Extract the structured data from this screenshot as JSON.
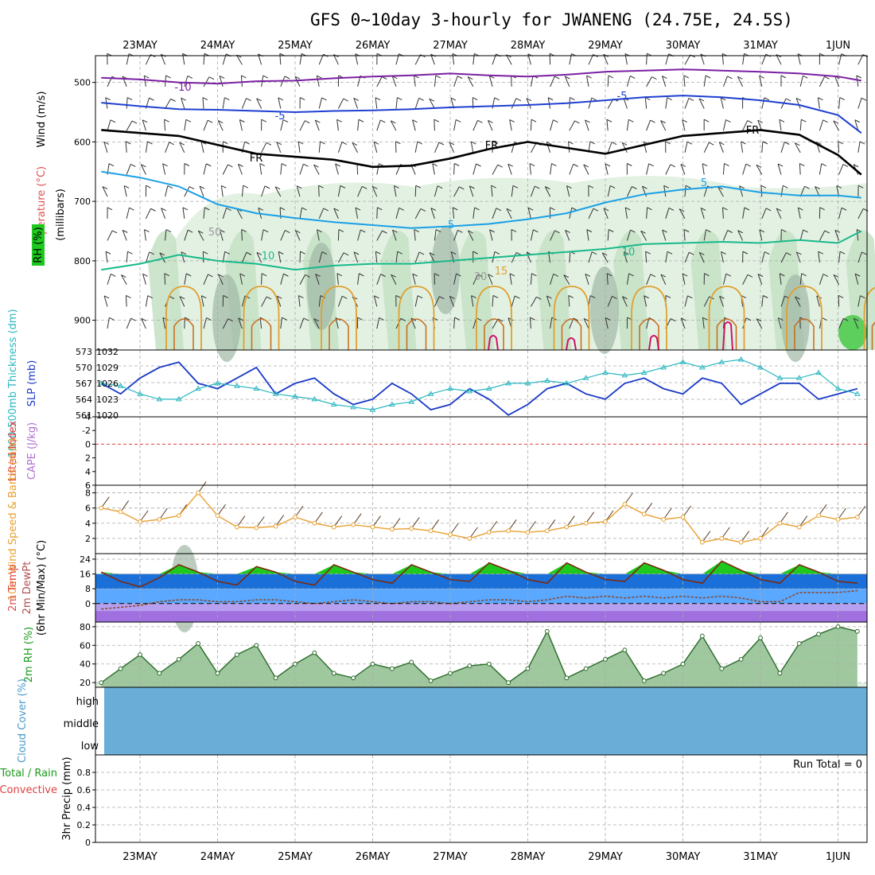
{
  "title": "GFS 0~10day 3-hourly for JWANENG (24.75E, 24.5S)",
  "colors": {
    "purple": "#7a1fa2",
    "blue": "#1f3fd0",
    "cyan": "#1aa0e6",
    "teal": "#19b98a",
    "orange": "#e0a030",
    "magenta": "#d0106a",
    "rh_light": "#e3f1e3",
    "rh_mid": "#c6e2c6",
    "rh_dark": "#9fb8a5",
    "slp": "#1a3ac8",
    "thick": "#2ab7c0",
    "wind10": "#e8a030",
    "cloud": "#6aaed8",
    "green": "#1ec81e",
    "yellow": "#f0f060",
    "lifted": "#e04040"
  },
  "chart_data": {
    "type": "meteogram",
    "days": [
      "23MAY",
      "24MAY",
      "25MAY",
      "26MAY",
      "27MAY",
      "28MAY",
      "29MAY",
      "30MAY",
      "31MAY",
      "1JUN"
    ],
    "x_range_days": [
      -0.5,
      9.3
    ],
    "upper_air": {
      "ylabel_wind": "Wind (m/s)",
      "ylabel_temp": "Temperature (°C)",
      "ylabel_rh": "RH (%)",
      "ylabel_pressure": "(millibars)",
      "pressure_ticks": [
        500,
        600,
        700,
        800,
        900
      ],
      "pressure_range": [
        455,
        950
      ],
      "contour_labels": [
        "-10",
        "-5",
        "FR",
        "5",
        "10",
        "15",
        "30",
        "50"
      ],
      "iso_m10": {
        "x": [
          -0.5,
          0,
          0.5,
          1,
          1.5,
          2,
          2.5,
          3,
          3.5,
          4,
          4.5,
          5,
          5.5,
          6,
          6.5,
          7,
          7.5,
          8,
          8.5,
          9,
          9.3
        ],
        "p": [
          492,
          495,
          500,
          502,
          498,
          497,
          493,
          490,
          488,
          485,
          488,
          490,
          487,
          482,
          480,
          478,
          480,
          482,
          485,
          490,
          497
        ]
      },
      "iso_m5": {
        "x": [
          -0.5,
          0,
          0.5,
          1,
          1.5,
          2,
          2.5,
          3,
          3.5,
          4,
          4.5,
          5,
          5.5,
          6,
          6.5,
          7,
          7.5,
          8,
          8.5,
          9,
          9.3
        ],
        "p": [
          534,
          540,
          545,
          546,
          548,
          550,
          548,
          547,
          545,
          542,
          540,
          538,
          535,
          530,
          525,
          522,
          525,
          530,
          538,
          555,
          585
        ]
      },
      "iso_fr": {
        "x": [
          -0.5,
          0,
          0.5,
          1,
          1.5,
          2,
          2.5,
          3,
          3.5,
          4,
          4.5,
          5,
          5.5,
          6,
          6.5,
          7,
          7.5,
          8,
          8.5,
          9,
          9.3
        ],
        "p": [
          580,
          585,
          590,
          605,
          620,
          625,
          630,
          642,
          640,
          628,
          612,
          600,
          610,
          620,
          605,
          590,
          585,
          580,
          588,
          622,
          655
        ]
      },
      "iso_p5": {
        "x": [
          -0.5,
          0,
          0.5,
          1,
          1.5,
          2,
          2.5,
          3,
          3.5,
          4,
          4.5,
          5,
          5.5,
          6,
          6.5,
          7,
          7.5,
          8,
          8.5,
          9,
          9.3
        ],
        "p": [
          650,
          660,
          675,
          705,
          720,
          728,
          735,
          740,
          745,
          742,
          738,
          730,
          720,
          702,
          688,
          680,
          675,
          685,
          690,
          690,
          694
        ]
      },
      "iso_p10": {
        "x": [
          -0.5,
          0,
          0.5,
          1,
          1.5,
          2,
          2.5,
          3,
          3.5,
          4,
          4.5,
          5,
          5.5,
          6,
          6.5,
          7,
          7.5,
          8,
          8.5,
          9,
          9.3
        ],
        "p": [
          815,
          805,
          790,
          800,
          805,
          815,
          808,
          805,
          805,
          800,
          795,
          790,
          785,
          780,
          772,
          770,
          768,
          770,
          765,
          770,
          750
        ]
      }
    },
    "slp_thickness": {
      "ylabel_thickness": "1000-500mb Thickness (dm)",
      "ylabel_slp": "SLP (mb)",
      "thickness_ticks": [
        561,
        564,
        567,
        570,
        573
      ],
      "slp_ticks": [
        1020,
        1023,
        1026,
        1029,
        1032
      ],
      "x": [
        -0.5,
        -0.25,
        0,
        0.25,
        0.5,
        0.75,
        1,
        1.25,
        1.5,
        1.75,
        2,
        2.25,
        2.5,
        2.75,
        3,
        3.25,
        3.5,
        3.75,
        4,
        4.25,
        4.5,
        4.75,
        5,
        5.25,
        5.5,
        5.75,
        6,
        6.25,
        6.5,
        6.75,
        7,
        7.25,
        7.5,
        7.75,
        8,
        8.25,
        8.5,
        8.75,
        9,
        9.25
      ],
      "slp": [
        1026,
        1024,
        1027,
        1029,
        1030,
        1026,
        1025,
        1027,
        1029,
        1024,
        1026,
        1027,
        1024,
        1022,
        1023,
        1026,
        1024,
        1021,
        1022,
        1025,
        1023,
        1020,
        1022,
        1025,
        1026,
        1024,
        1023,
        1026,
        1027,
        1025,
        1024,
        1027,
        1026,
        1022,
        1024,
        1026,
        1026,
        1023,
        1024,
        1025
      ],
      "thickness": [
        567,
        566.5,
        565,
        564,
        564,
        566,
        567,
        566.5,
        566,
        565,
        564.5,
        564,
        563,
        562.5,
        562,
        563,
        563.5,
        565,
        566,
        565.5,
        566,
        567,
        567,
        567.5,
        567,
        568,
        569,
        568.5,
        569,
        570,
        571,
        570,
        571,
        571.5,
        570,
        568,
        568,
        569,
        566,
        565
      ]
    },
    "lifted_cape": {
      "ylabel_lifted": "Lifted Index",
      "ylabel_cape": "CAPE (J/kg)",
      "ticks": [
        -4,
        -2,
        0,
        2,
        4,
        6
      ],
      "lifted": [
        6,
        6,
        6,
        6,
        6,
        6,
        6,
        6,
        6,
        6
      ]
    },
    "wind10m": {
      "ylabel": "10m Wind Speed & Barbs (m/s)",
      "ticks": [
        2,
        4,
        6,
        8
      ],
      "x": [
        -0.5,
        -0.25,
        0,
        0.25,
        0.5,
        0.75,
        1,
        1.25,
        1.5,
        1.75,
        2,
        2.25,
        2.5,
        2.75,
        3,
        3.25,
        3.5,
        3.75,
        4,
        4.25,
        4.5,
        4.75,
        5,
        5.25,
        5.5,
        5.75,
        6,
        6.25,
        6.5,
        6.75,
        7,
        7.25,
        7.5,
        7.75,
        8,
        8.25,
        8.5,
        8.75,
        9,
        9.25
      ],
      "speed": [
        6,
        5.5,
        4.2,
        4.5,
        5,
        8,
        5,
        3.5,
        3.4,
        3.6,
        4.8,
        4,
        3.5,
        3.8,
        3.5,
        3.2,
        3.3,
        3,
        2.5,
        2,
        2.8,
        3,
        2.8,
        3,
        3.5,
        4,
        4.2,
        6.5,
        5.2,
        4.5,
        4.8,
        1.5,
        2,
        1.5,
        2,
        4,
        3.5,
        5,
        4.5,
        4.8
      ]
    },
    "temp2m": {
      "ylabel_temp": "2m Temp",
      "ylabel_dewpt": "2m DewPt",
      "ylabel_minmax": "(6hr Min/Max) (°C)",
      "ticks": [
        0,
        8,
        16,
        24
      ],
      "x": [
        -0.5,
        -0.25,
        0,
        0.25,
        0.5,
        0.75,
        1,
        1.25,
        1.5,
        1.75,
        2,
        2.25,
        2.5,
        2.75,
        3,
        3.25,
        3.5,
        3.75,
        4,
        4.25,
        4.5,
        4.75,
        5,
        5.25,
        5.5,
        5.75,
        6,
        6.25,
        6.5,
        6.75,
        7,
        7.25,
        7.5,
        7.75,
        8,
        8.25,
        8.5,
        8.75,
        9,
        9.25
      ],
      "temp": [
        17,
        12,
        9,
        14,
        21,
        17,
        12,
        10,
        20,
        17,
        12,
        10,
        21,
        17,
        13,
        11,
        21,
        17,
        13,
        12,
        22,
        18,
        13,
        11,
        22,
        17,
        13,
        12,
        22,
        18,
        13,
        11,
        23,
        18,
        13,
        11,
        21,
        17,
        12,
        11
      ],
      "dewpt": [
        -3,
        -2,
        -1,
        1,
        2,
        2,
        1,
        1,
        2,
        2,
        1,
        0,
        1,
        2,
        1,
        0,
        1,
        1,
        0,
        1,
        2,
        2,
        1,
        2,
        4,
        3,
        4,
        3,
        4,
        3,
        4,
        3,
        4,
        3,
        1,
        1,
        6,
        6,
        6,
        7
      ]
    },
    "rh2m": {
      "ylabel": "2m RH (%)",
      "ticks": [
        20,
        40,
        60,
        80
      ],
      "x": [
        -0.5,
        -0.25,
        0,
        0.25,
        0.5,
        0.75,
        1,
        1.25,
        1.5,
        1.75,
        2,
        2.25,
        2.5,
        2.75,
        3,
        3.25,
        3.5,
        3.75,
        4,
        4.25,
        4.5,
        4.75,
        5,
        5.25,
        5.5,
        5.75,
        6,
        6.25,
        6.5,
        6.75,
        7,
        7.25,
        7.5,
        7.75,
        8,
        8.25,
        8.5,
        8.75,
        9,
        9.25
      ],
      "rh": [
        20,
        35,
        50,
        30,
        45,
        62,
        30,
        50,
        60,
        25,
        40,
        52,
        30,
        25,
        40,
        35,
        42,
        22,
        30,
        38,
        40,
        20,
        35,
        75,
        25,
        35,
        45,
        55,
        22,
        30,
        40,
        70,
        35,
        45,
        68,
        30,
        62,
        72,
        80,
        75
      ]
    },
    "cloud_cover": {
      "ylabel": "Cloud Cover (%)",
      "levels": [
        "high",
        "middle",
        "low"
      ],
      "fraction": 1.0
    },
    "precip": {
      "ylabel_main": "3hr Precip (mm)",
      "ylabel_total": "Total / Rain",
      "ylabel_conv": "Convective",
      "ticks": [
        "0",
        "0.2",
        "0.4",
        "0.6",
        "0.8"
      ],
      "tick_values": [
        0,
        0.2,
        0.4,
        0.6,
        0.8
      ],
      "ylim": [
        0,
        1
      ],
      "run_total_label": "Run Total = 0"
    }
  }
}
